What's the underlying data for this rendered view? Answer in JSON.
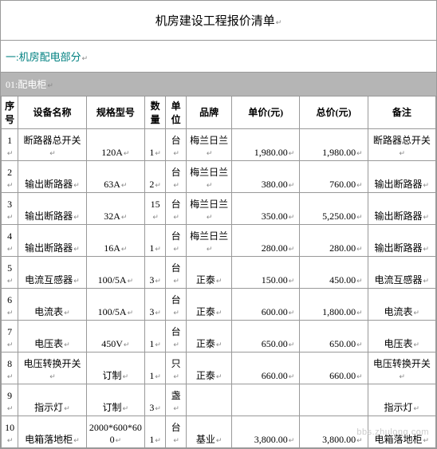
{
  "title": "机房建设工程报价清单",
  "section": "一:机房配电部分",
  "subsection": "01:配电柜",
  "return_mark": "↵",
  "columns": {
    "idx": "序号",
    "name": "设备名称",
    "spec": "规格型号",
    "qty": "数量",
    "unit": "单位",
    "brand": "品牌",
    "price": "单价(元)",
    "total": "总价(元)",
    "note": "备注"
  },
  "rows": [
    {
      "idx": "1",
      "name": "断路器总开关",
      "spec": "120A",
      "qty": "1",
      "unit": "台",
      "brand": "梅兰日兰",
      "price": "1,980.00",
      "total": "1,980.00",
      "note": "断路器总开关"
    },
    {
      "idx": "2",
      "name": "输出断路器",
      "spec": "63A",
      "qty": "2",
      "unit": "台",
      "brand": "梅兰日兰",
      "price": "380.00",
      "total": "760.00",
      "note": "输出断路器"
    },
    {
      "idx": "3",
      "name": "输出断路器",
      "spec": "32A",
      "qty": "15",
      "unit": "台",
      "brand": "梅兰日兰",
      "price": "350.00",
      "total": "5,250.00",
      "note": "输出断路器"
    },
    {
      "idx": "4",
      "name": "输出断路器",
      "spec": "16A",
      "qty": "1",
      "unit": "台",
      "brand": "梅兰日兰",
      "price": "280.00",
      "total": "280.00",
      "note": "输出断路器"
    },
    {
      "idx": "5",
      "name": "电流互感器",
      "spec": "100/5A",
      "qty": "3",
      "unit": "台",
      "brand": "正泰",
      "price": "150.00",
      "total": "450.00",
      "note": "电流互感器"
    },
    {
      "idx": "6",
      "name": "电流表",
      "spec": "100/5A",
      "qty": "3",
      "unit": "台",
      "brand": "正泰",
      "price": "600.00",
      "total": "1,800.00",
      "note": "电流表"
    },
    {
      "idx": "7",
      "name": "电压表",
      "spec": "450V",
      "qty": "1",
      "unit": "台",
      "brand": "正泰",
      "price": "650.00",
      "total": "650.00",
      "note": "电压表"
    },
    {
      "idx": "8",
      "name": "电压转换开关",
      "spec": "订制",
      "qty": "1",
      "unit": "只",
      "brand": "正泰",
      "price": "660.00",
      "total": "660.00",
      "note": "电压转换开关"
    },
    {
      "idx": "9",
      "name": "指示灯",
      "spec": "订制",
      "qty": "3",
      "unit": "盏",
      "brand": "",
      "price": "",
      "total": "",
      "note": "指示灯"
    },
    {
      "idx": "10",
      "name": "电箱落地柜",
      "spec": "2000*600*600",
      "qty": "1",
      "unit": "台",
      "brand": "基业",
      "price": "3,800.00",
      "total": "3,800.00",
      "note": "电箱落地柜"
    }
  ],
  "watermark": "bbs.zhulong.com",
  "colors": {
    "section_text": "#008080",
    "subsection_bg": "#b5b5b5",
    "subsection_text": "#ffffff",
    "border": "#999999",
    "watermark": "#cccccc"
  }
}
